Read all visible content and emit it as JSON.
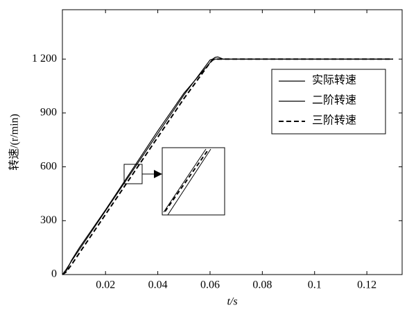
{
  "chart_data": {
    "type": "line",
    "x_label": "t/s",
    "y_label": "转速/(r/min)",
    "x": [
      0.0035,
      0.005,
      0.007,
      0.01,
      0.02,
      0.03,
      0.04,
      0.05,
      0.06,
      0.061,
      0.062,
      0.063,
      0.065,
      0.07,
      0.1,
      0.13
    ],
    "series": [
      {
        "name": "实际转速",
        "color": "#000000",
        "dash": false,
        "values": [
          0,
          20,
          80,
          150,
          360,
          580,
          800,
          1010,
          1180,
          1200,
          1210,
          1212,
          1200,
          1200,
          1200,
          1200
        ]
      },
      {
        "name": "二阶转速",
        "color": "#000000",
        "dash": false,
        "values": [
          0,
          30,
          75,
          140,
          355,
          570,
          785,
          1000,
          1195,
          1200,
          1200,
          1200,
          1200,
          1200,
          1200,
          1200
        ]
      },
      {
        "name": "三阶转速",
        "color": "#000000",
        "dash": true,
        "values": [
          0,
          15,
          55,
          120,
          335,
          550,
          765,
          980,
          1180,
          1195,
          1200,
          1200,
          1200,
          1200,
          1200,
          1200
        ]
      }
    ],
    "xlim": [
      0.0035,
      0.1335
    ],
    "ylim": [
      0,
      1475
    ],
    "xticks": [
      0.02,
      0.04,
      0.06,
      0.08,
      0.1,
      0.12
    ],
    "yticks": [
      0,
      300,
      600,
      900,
      {
        "value": 1200,
        "label": "1 200"
      }
    ],
    "legend": "upper right"
  }
}
